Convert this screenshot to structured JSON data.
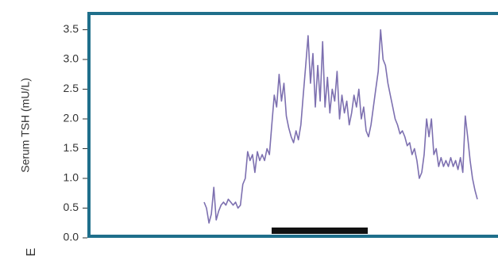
{
  "chart_data": {
    "type": "line",
    "y_label": "Serum TSH (mU/L)",
    "panel_label": "E",
    "color": "#7d70b0",
    "values": [
      0.6,
      0.5,
      0.25,
      0.4,
      0.85,
      0.3,
      0.45,
      0.55,
      0.6,
      0.55,
      0.65,
      0.6,
      0.55,
      0.6,
      0.5,
      0.55,
      0.9,
      1.0,
      1.45,
      1.3,
      1.4,
      1.1,
      1.45,
      1.3,
      1.4,
      1.3,
      1.5,
      1.4,
      1.9,
      2.4,
      2.2,
      2.75,
      2.3,
      2.6,
      2.05,
      1.85,
      1.7,
      1.6,
      1.8,
      1.65,
      1.9,
      2.4,
      2.9,
      3.4,
      2.6,
      3.1,
      2.2,
      2.9,
      2.3,
      3.3,
      2.2,
      2.7,
      2.1,
      2.5,
      2.3,
      2.8,
      2.0,
      2.4,
      2.1,
      2.3,
      1.9,
      2.1,
      2.4,
      2.2,
      2.5,
      2.0,
      2.2,
      1.8,
      1.7,
      1.9,
      2.2,
      2.5,
      2.8,
      3.5,
      3.0,
      2.9,
      2.6,
      2.4,
      2.2,
      2.0,
      1.9,
      1.75,
      1.8,
      1.7,
      1.55,
      1.6,
      1.4,
      1.5,
      1.3,
      1.0,
      1.1,
      1.4,
      2.0,
      1.7,
      2.0,
      1.4,
      1.5,
      1.2,
      1.35,
      1.2,
      1.3,
      1.2,
      1.35,
      1.2,
      1.3,
      1.15,
      1.35,
      1.1,
      2.05,
      1.7,
      1.3,
      1.0,
      0.8,
      0.65
    ],
    "ylim": [
      0,
      3.8
    ],
    "yticks": [
      {
        "value": 0,
        "label": "0.0"
      },
      0.5,
      {
        "value": 1,
        "label": "1.0"
      },
      1.5,
      {
        "value": 2,
        "label": "2.0"
      },
      2.5,
      {
        "value": 3,
        "label": "3.0"
      },
      3.5
    ]
  }
}
